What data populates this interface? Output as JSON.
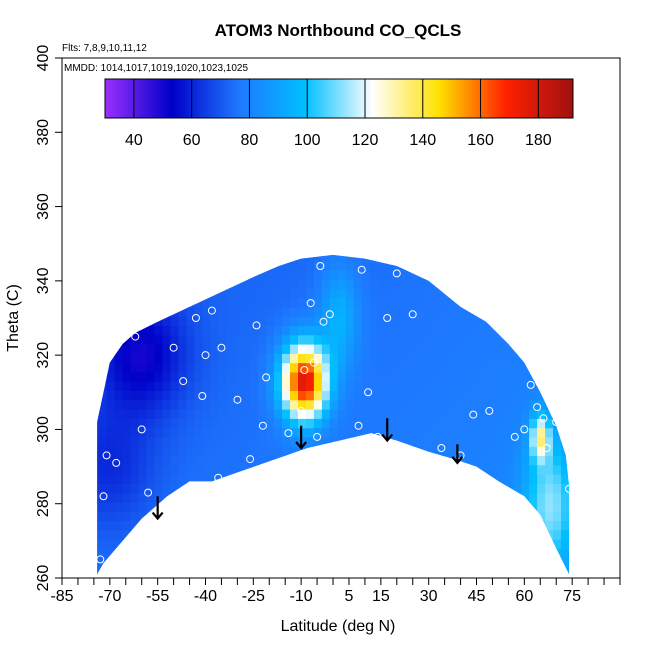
{
  "chart_data": {
    "type": "heatmap",
    "title": "ATOM3 Northbound CO_QCLS",
    "subtitle_flights": "Flts: 7,8,9,10,11,12",
    "subtitle_dates": "MMDD: 1014,1017,1019,1020,1023,1025",
    "xlabel": "Latitude (deg N)",
    "ylabel": "Theta (C)",
    "xlim": [
      -85,
      90
    ],
    "ylim": [
      260,
      400
    ],
    "x_ticks": [
      -85,
      -70,
      -55,
      -40,
      -25,
      -10,
      5,
      15,
      30,
      45,
      60,
      75
    ],
    "x_tick_labels": [
      "-85",
      "-70",
      "-55",
      "-40",
      "-25",
      "-10",
      "5",
      "15",
      "30",
      "45",
      "60",
      "75"
    ],
    "y_ticks": [
      260,
      280,
      300,
      320,
      340,
      360,
      380,
      400
    ],
    "y_tick_labels": [
      "260",
      "280",
      "300",
      "320",
      "340",
      "360",
      "380",
      "400"
    ],
    "colorbar": {
      "range": [
        30,
        192
      ],
      "ticks": [
        40,
        60,
        80,
        100,
        120,
        140,
        160,
        180
      ],
      "tick_labels": [
        "40",
        "60",
        "80",
        "100",
        "120",
        "140",
        "160",
        "180"
      ],
      "colors": [
        "#9b30ff",
        "#0000c8",
        "#1e78ff",
        "#00bfff",
        "#ffffff",
        "#ffe000",
        "#ff2000",
        "#a01010"
      ]
    },
    "sample_points": [
      [
        -73,
        265
      ],
      [
        -72,
        282
      ],
      [
        -71,
        293
      ],
      [
        -68,
        291
      ],
      [
        -58,
        283
      ],
      [
        -60,
        300
      ],
      [
        -62,
        325
      ],
      [
        -50,
        322
      ],
      [
        -47,
        313
      ],
      [
        -41,
        309
      ],
      [
        -40,
        320
      ],
      [
        -43,
        330
      ],
      [
        -38,
        332
      ],
      [
        -35,
        322
      ],
      [
        -36,
        287
      ],
      [
        -30,
        308
      ],
      [
        -26,
        292
      ],
      [
        -22,
        301
      ],
      [
        -21,
        314
      ],
      [
        -24,
        328
      ],
      [
        -14,
        299
      ],
      [
        -10,
        305
      ],
      [
        -9,
        316
      ],
      [
        -6,
        318
      ],
      [
        -7,
        334
      ],
      [
        -5,
        298
      ],
      [
        -3,
        329
      ],
      [
        -1,
        331
      ],
      [
        -4,
        344
      ],
      [
        8,
        301
      ],
      [
        11,
        310
      ],
      [
        9,
        343
      ],
      [
        14,
        298
      ],
      [
        17,
        330
      ],
      [
        20,
        342
      ],
      [
        25,
        331
      ],
      [
        34,
        295
      ],
      [
        40,
        293
      ],
      [
        44,
        304
      ],
      [
        49,
        305
      ],
      [
        57,
        298
      ],
      [
        60,
        300
      ],
      [
        62,
        312
      ],
      [
        63,
        316
      ],
      [
        65,
        320
      ],
      [
        64,
        306
      ],
      [
        66,
        303
      ],
      [
        67,
        295
      ],
      [
        70,
        302
      ],
      [
        72,
        305
      ],
      [
        74,
        284
      ]
    ],
    "arrows_at_latitude": [
      -55,
      -10,
      17,
      39
    ],
    "field": {
      "description": "interpolated CO mixing ratio curtain",
      "background_value": 72,
      "hotspots": [
        {
          "lat": -9,
          "theta": 313,
          "value": 175
        },
        {
          "lat": 65,
          "theta": 298,
          "value": 118
        }
      ],
      "low_regions": [
        {
          "lat": -60,
          "theta": 320,
          "value": 50
        },
        {
          "lat": -70,
          "theta": 290,
          "value": 60
        }
      ]
    }
  }
}
